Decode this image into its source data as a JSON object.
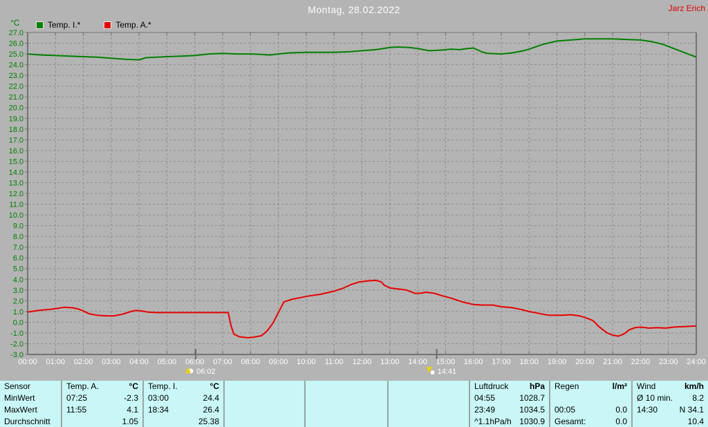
{
  "header": {
    "title": "Montag, 28.02.2022",
    "author": "Jarz Erich"
  },
  "chart_data": {
    "type": "line",
    "title": "Montag, 28.02.2022",
    "grid": true,
    "y_axis": {
      "unit": "°C",
      "min": -3,
      "max": 27,
      "step": 1,
      "label_color": "#007e00"
    },
    "x_axis": {
      "start_hour": 0,
      "end_hour": 24,
      "step_hours": 1,
      "label_color": "#ffffff",
      "tick_labels": [
        "00:00",
        "01:00",
        "02:00",
        "03:00",
        "04:00",
        "05:00",
        "06:00",
        "07:00",
        "08:00",
        "09:00",
        "10:00",
        "11:00",
        "12:00",
        "13:00",
        "14:00",
        "15:00",
        "16:00",
        "17:00",
        "18:00",
        "19:00",
        "20:00",
        "21:00",
        "22:00",
        "23:00",
        "24:00"
      ]
    },
    "legend": [
      {
        "label": "Temp. I.*",
        "color": "#008000"
      },
      {
        "label": "Temp. A.*",
        "color": "#e80000"
      }
    ],
    "sun_markers": [
      {
        "type": "sunrise",
        "time": "06:02",
        "hour": 6.033
      },
      {
        "type": "sunset",
        "time": "14:41",
        "hour": 14.683
      }
    ],
    "series": [
      {
        "name": "Temp. I.*",
        "color": "#008000",
        "points": [
          [
            0,
            25.0
          ],
          [
            0.5,
            24.9
          ],
          [
            1,
            24.85
          ],
          [
            1.5,
            24.8
          ],
          [
            2,
            24.75
          ],
          [
            2.5,
            24.7
          ],
          [
            3,
            24.6
          ],
          [
            3.5,
            24.5
          ],
          [
            4,
            24.45
          ],
          [
            4.25,
            24.65
          ],
          [
            5,
            24.75
          ],
          [
            5.5,
            24.8
          ],
          [
            6,
            24.85
          ],
          [
            6.5,
            25.0
          ],
          [
            7,
            25.05
          ],
          [
            7.5,
            25.0
          ],
          [
            8,
            25.0
          ],
          [
            8.4,
            24.95
          ],
          [
            8.7,
            24.9
          ],
          [
            9,
            25.0
          ],
          [
            9.4,
            25.1
          ],
          [
            10,
            25.15
          ],
          [
            11,
            25.15
          ],
          [
            11.5,
            25.2
          ],
          [
            12,
            25.3
          ],
          [
            12.5,
            25.4
          ],
          [
            13,
            25.6
          ],
          [
            13.3,
            25.65
          ],
          [
            13.7,
            25.6
          ],
          [
            14,
            25.5
          ],
          [
            14.4,
            25.3
          ],
          [
            14.8,
            25.35
          ],
          [
            15.2,
            25.45
          ],
          [
            15.5,
            25.4
          ],
          [
            15.8,
            25.5
          ],
          [
            16,
            25.55
          ],
          [
            16.3,
            25.2
          ],
          [
            16.5,
            25.05
          ],
          [
            17,
            25.0
          ],
          [
            17.4,
            25.1
          ],
          [
            17.8,
            25.3
          ],
          [
            18,
            25.45
          ],
          [
            18.5,
            25.9
          ],
          [
            19,
            26.2
          ],
          [
            19.5,
            26.3
          ],
          [
            20,
            26.4
          ],
          [
            21,
            26.4
          ],
          [
            21.5,
            26.35
          ],
          [
            22,
            26.3
          ],
          [
            22.4,
            26.15
          ],
          [
            22.8,
            25.9
          ],
          [
            23.2,
            25.5
          ],
          [
            23.6,
            25.1
          ],
          [
            24,
            24.7
          ]
        ]
      },
      {
        "name": "Temp. A.*",
        "color": "#e80000",
        "points": [
          [
            0,
            0.95
          ],
          [
            0.4,
            1.1
          ],
          [
            0.8,
            1.2
          ],
          [
            1.1,
            1.3
          ],
          [
            1.3,
            1.4
          ],
          [
            1.6,
            1.35
          ],
          [
            1.8,
            1.25
          ],
          [
            2,
            1.05
          ],
          [
            2.2,
            0.8
          ],
          [
            2.5,
            0.65
          ],
          [
            2.8,
            0.6
          ],
          [
            3.1,
            0.6
          ],
          [
            3.4,
            0.75
          ],
          [
            3.7,
            1.0
          ],
          [
            3.9,
            1.1
          ],
          [
            4.1,
            1.05
          ],
          [
            4.3,
            0.95
          ],
          [
            4.6,
            0.9
          ],
          [
            5.5,
            0.9
          ],
          [
            6.5,
            0.9
          ],
          [
            7.2,
            0.9
          ],
          [
            7.3,
            -0.3
          ],
          [
            7.4,
            -1.1
          ],
          [
            7.6,
            -1.35
          ],
          [
            7.9,
            -1.45
          ],
          [
            8.1,
            -1.4
          ],
          [
            8.4,
            -1.25
          ],
          [
            8.6,
            -0.8
          ],
          [
            8.8,
            -0.1
          ],
          [
            9,
            0.9
          ],
          [
            9.2,
            1.9
          ],
          [
            9.5,
            2.15
          ],
          [
            9.8,
            2.3
          ],
          [
            10.1,
            2.45
          ],
          [
            10.5,
            2.6
          ],
          [
            11,
            2.9
          ],
          [
            11.3,
            3.15
          ],
          [
            11.6,
            3.5
          ],
          [
            11.9,
            3.75
          ],
          [
            12.2,
            3.85
          ],
          [
            12.5,
            3.9
          ],
          [
            12.7,
            3.75
          ],
          [
            12.8,
            3.45
          ],
          [
            13,
            3.2
          ],
          [
            13.3,
            3.1
          ],
          [
            13.6,
            3.0
          ],
          [
            13.9,
            2.7
          ],
          [
            14.1,
            2.7
          ],
          [
            14.3,
            2.8
          ],
          [
            14.6,
            2.7
          ],
          [
            14.9,
            2.45
          ],
          [
            15.2,
            2.25
          ],
          [
            15.6,
            1.9
          ],
          [
            16,
            1.65
          ],
          [
            16.3,
            1.6
          ],
          [
            16.7,
            1.6
          ],
          [
            17,
            1.45
          ],
          [
            17.4,
            1.35
          ],
          [
            17.7,
            1.2
          ],
          [
            18,
            1.0
          ],
          [
            18.3,
            0.85
          ],
          [
            18.7,
            0.65
          ],
          [
            19.2,
            0.65
          ],
          [
            19.5,
            0.7
          ],
          [
            19.8,
            0.6
          ],
          [
            20,
            0.45
          ],
          [
            20.3,
            0.15
          ],
          [
            20.5,
            -0.4
          ],
          [
            20.8,
            -1.0
          ],
          [
            21,
            -1.2
          ],
          [
            21.2,
            -1.3
          ],
          [
            21.4,
            -1.1
          ],
          [
            21.6,
            -0.7
          ],
          [
            21.8,
            -0.5
          ],
          [
            22,
            -0.45
          ],
          [
            22.3,
            -0.55
          ],
          [
            22.6,
            -0.5
          ],
          [
            22.9,
            -0.55
          ],
          [
            23.2,
            -0.45
          ],
          [
            23.6,
            -0.4
          ],
          [
            24,
            -0.35
          ]
        ]
      }
    ]
  },
  "table": {
    "row_labels": [
      "Sensor",
      "MinWert",
      "MaxWert",
      "Durchschnitt"
    ],
    "columns": [
      {
        "title": "Temp. A.",
        "unit": "°C",
        "rows": [
          [
            "07:25",
            "-2.3"
          ],
          [
            "11:55",
            "4.1"
          ],
          [
            "",
            "1.05"
          ]
        ]
      },
      {
        "title": "Temp. I.",
        "unit": "°C",
        "rows": [
          [
            "03:00",
            "24.4"
          ],
          [
            "18:34",
            "26.4"
          ],
          [
            "",
            "25.38"
          ]
        ]
      },
      {
        "title": "",
        "unit": "",
        "rows": [
          [
            "",
            ""
          ],
          [
            "",
            ""
          ],
          [
            "",
            ""
          ]
        ]
      },
      {
        "title": "",
        "unit": "",
        "rows": [
          [
            "",
            ""
          ],
          [
            "",
            ""
          ],
          [
            "",
            ""
          ]
        ]
      },
      {
        "title": "",
        "unit": "",
        "rows": [
          [
            "",
            ""
          ],
          [
            "",
            ""
          ],
          [
            "",
            ""
          ]
        ]
      },
      {
        "title": "Luftdruck",
        "unit": "hPa",
        "rows": [
          [
            "04:55",
            "1028.7"
          ],
          [
            "23:49",
            "1034.5"
          ],
          [
            "^1.1hPa/h",
            "1030.9"
          ]
        ]
      },
      {
        "title": "Regen",
        "unit": "l/m²",
        "rows": [
          [
            "",
            ""
          ],
          [
            "00:05",
            "0.0"
          ],
          [
            "Gesamt:",
            "0.0"
          ]
        ]
      },
      {
        "title": "Wind",
        "unit": "km/h",
        "rows": [
          [
            "Ø 10 min.",
            "8.2"
          ],
          [
            "14:30",
            "N 34.1"
          ],
          [
            "",
            "10.4"
          ]
        ]
      }
    ]
  },
  "colors": {
    "background": "#b4b4b4",
    "grid": "#8d8d8d",
    "frame": "#737373",
    "table_background": "#c9f6f6",
    "table_divider": "#9aa4a4",
    "title_text": "#ffffff",
    "author_text": "#dd0000",
    "y_axis_text": "#007e00",
    "x_axis_text": "#ffffff",
    "sun_marker_yellow": "#e8d000"
  }
}
